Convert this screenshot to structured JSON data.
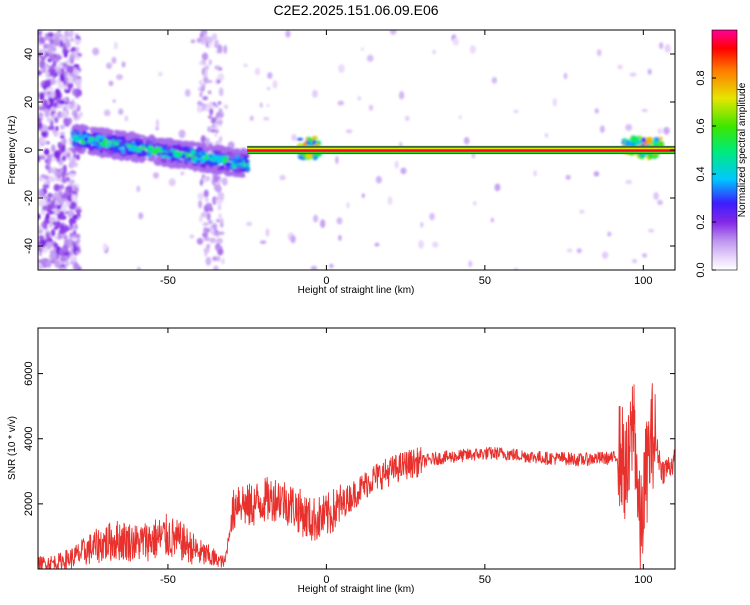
{
  "title": "C2E2.2025.151.06.09.E06",
  "colors": {
    "trace": "#e8302c",
    "frame": "#000000"
  },
  "chart_data": [
    {
      "type": "heatmap",
      "xlabel": "Height of straight line (km)",
      "ylabel": "Frequency (Hz)",
      "xlim": [
        -91,
        110
      ],
      "ylim": [
        -50,
        50
      ],
      "xticks": [
        -50,
        0,
        50,
        100
      ],
      "yticks": [
        -40,
        -20,
        0,
        20,
        40
      ],
      "colorbar": {
        "label": "Normalized spectral amplitude",
        "range": [
          0,
          1
        ],
        "ticks": [
          "0.0",
          "0.2",
          "0.4",
          "0.6",
          "0.8"
        ],
        "tick_values": [
          0,
          0.2,
          0.4,
          0.6,
          0.8
        ],
        "colormap": "rainbow"
      },
      "features": [
        {
          "x": [
            -80,
            -25
          ],
          "center_hz": [
            5,
            -6
          ],
          "peak_amplitude": 0.6
        },
        {
          "x": [
            -25,
            110
          ],
          "center_hz": [
            0,
            0
          ],
          "peak_amplitude": 1.0
        }
      ]
    },
    {
      "type": "line",
      "xlabel": "Height of straight line (km)",
      "ylabel": "SNR (10 * v/v)",
      "xlim": [
        -91,
        110
      ],
      "ylim": [
        0,
        7400
      ],
      "xticks": [
        -50,
        0,
        50,
        100
      ],
      "yticks": [
        2000,
        4000,
        6000
      ],
      "series": [
        {
          "x": [
            -91,
            -85,
            -80,
            -75,
            -70,
            -65,
            -60,
            -55,
            -50,
            -45,
            -40,
            -35,
            -32,
            -30,
            -28,
            -25,
            -20,
            -15,
            -10,
            -5,
            0,
            5,
            10,
            15,
            20,
            25,
            30,
            35,
            40,
            45,
            50,
            55,
            60,
            65,
            70,
            75,
            80,
            85,
            90,
            93,
            95,
            97,
            99,
            101,
            103,
            106,
            110
          ],
          "values": [
            150,
            200,
            350,
            600,
            800,
            900,
            800,
            900,
            1000,
            800,
            500,
            300,
            200,
            1500,
            2200,
            1900,
            2100,
            2200,
            1900,
            1500,
            1600,
            2000,
            2400,
            2800,
            3000,
            3200,
            3300,
            3400,
            3450,
            3500,
            3550,
            3550,
            3500,
            3450,
            3400,
            3400,
            3350,
            3400,
            3400,
            3500,
            2800,
            4800,
            1000,
            3000,
            4200,
            3000,
            3300
          ]
        }
      ]
    }
  ]
}
